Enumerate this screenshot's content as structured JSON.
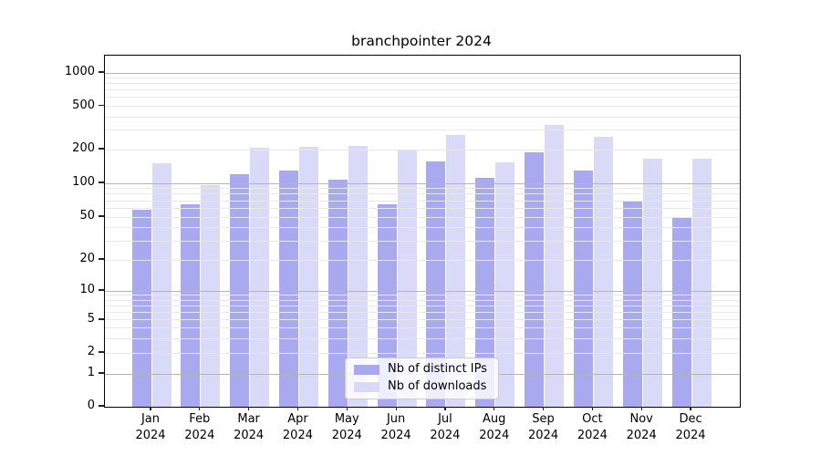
{
  "window": {
    "background": "#ffffff"
  },
  "chart_data": {
    "type": "bar",
    "title": "branchpointer 2024",
    "yscale": "symlog",
    "grid": true,
    "ylim": [
      0,
      1400
    ],
    "ytick_values": [
      0,
      1,
      2,
      5,
      10,
      20,
      50,
      100,
      200,
      500,
      1000
    ],
    "ytick_labels": [
      "0",
      "1",
      "2",
      "5",
      "10",
      "20",
      "50",
      "100",
      "200",
      "500",
      "1000"
    ],
    "major_grid_values": [
      1,
      10,
      100,
      1000
    ],
    "minor_grid_values": [
      2,
      3,
      4,
      5,
      6,
      7,
      8,
      9,
      20,
      30,
      40,
      50,
      60,
      70,
      80,
      90,
      200,
      300,
      400,
      500,
      600,
      700,
      800,
      900
    ],
    "categories": [
      {
        "month": "Jan",
        "year": "2024"
      },
      {
        "month": "Feb",
        "year": "2024"
      },
      {
        "month": "Mar",
        "year": "2024"
      },
      {
        "month": "Apr",
        "year": "2024"
      },
      {
        "month": "May",
        "year": "2024"
      },
      {
        "month": "Jun",
        "year": "2024"
      },
      {
        "month": "Jul",
        "year": "2024"
      },
      {
        "month": "Aug",
        "year": "2024"
      },
      {
        "month": "Sep",
        "year": "2024"
      },
      {
        "month": "Oct",
        "year": "2024"
      },
      {
        "month": "Nov",
        "year": "2024"
      },
      {
        "month": "Dec",
        "year": "2024"
      }
    ],
    "series": [
      {
        "name": "Nb of distinct IPs",
        "color": "#a9a9f0",
        "values": [
          58,
          65,
          120,
          130,
          108,
          65,
          158,
          112,
          190,
          129,
          69,
          50
        ]
      },
      {
        "name": "Nb of downloads",
        "color": "#d9d9f8",
        "values": [
          150,
          96,
          208,
          212,
          217,
          195,
          270,
          155,
          340,
          260,
          165,
          166
        ]
      }
    ],
    "legend_position": "lower-center-inside"
  },
  "legend": {
    "items": [
      {
        "label": "Nb of distinct IPs",
        "color": "#a9a9f0"
      },
      {
        "label": "Nb of downloads",
        "color": "#d9d9f8"
      }
    ]
  },
  "colors": {
    "bar_distinct_ips": "#a9a9f0",
    "bar_downloads": "#d9d9f8",
    "grid_major": "#b4b4b4",
    "grid_minor": "#e8e8e8",
    "spine": "#000000",
    "text": "#000000",
    "legend_border": "#cccccc"
  }
}
